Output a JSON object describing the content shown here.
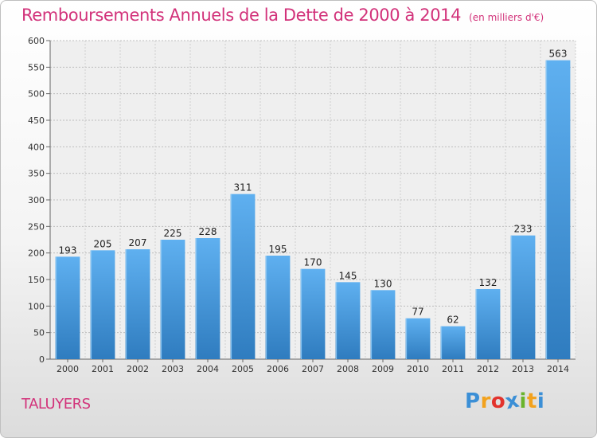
{
  "title": "Remboursements Annuels de la Dette de 2000 à 2014",
  "subtitle": "(en milliers d'€)",
  "commune": "TALUYERS",
  "logo": {
    "letters": [
      "P",
      "r",
      "o",
      "x",
      "i",
      "t",
      "i"
    ],
    "colors": [
      "#3b8fd6",
      "#f2a21e",
      "#e2332d",
      "#3b8fd6",
      "#6ab42c",
      "#f2a21e",
      "#3b8fd6"
    ]
  },
  "colors": {
    "bar": "#3d95dd",
    "bar_light": "#5fb0f0",
    "bar_dark": "#2f7cbf",
    "title": "#d2327a"
  },
  "chart_data": {
    "type": "bar",
    "categories": [
      "2000",
      "2001",
      "2002",
      "2003",
      "2004",
      "2005",
      "2006",
      "2007",
      "2008",
      "2009",
      "2010",
      "2011",
      "2012",
      "2013",
      "2014"
    ],
    "values": [
      193,
      205,
      207,
      225,
      228,
      311,
      195,
      170,
      145,
      130,
      77,
      62,
      132,
      233,
      563
    ],
    "ylim": [
      0,
      600
    ],
    "yticks": [
      0,
      50,
      100,
      150,
      200,
      250,
      300,
      350,
      400,
      450,
      500,
      550,
      600
    ],
    "grid": true,
    "data_labels": true
  }
}
